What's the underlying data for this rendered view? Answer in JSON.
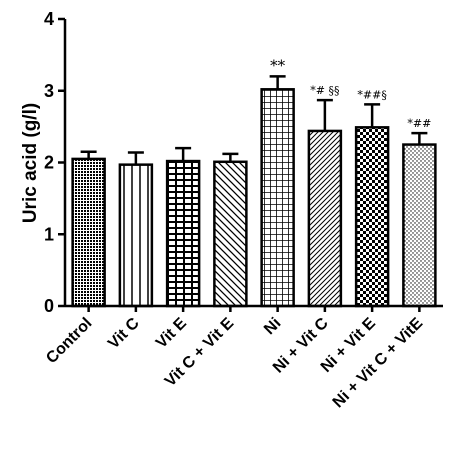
{
  "chart_data": {
    "type": "bar",
    "title": "",
    "xlabel": "",
    "ylabel": "Uric acid (g/l)",
    "ylim": [
      0,
      4
    ],
    "yticks": [
      0,
      1,
      2,
      3,
      4
    ],
    "grid": false,
    "categories": [
      "Control",
      "Vit C",
      "Vit E",
      "Vit C + Vit E",
      "Ni",
      "Ni + Vit C",
      "Ni + Vit E",
      "Ni + Vit C + VitE"
    ],
    "values": [
      2.05,
      1.97,
      2.02,
      2.01,
      3.02,
      2.44,
      2.49,
      2.25
    ],
    "errors": [
      0.1,
      0.17,
      0.18,
      0.11,
      0.18,
      0.43,
      0.32,
      0.16
    ],
    "annotations": [
      "",
      "",
      "",
      "",
      "**",
      "*# §§",
      "*##§",
      "*##"
    ],
    "patterns": [
      "dense-dots",
      "vertical-lines",
      "brick",
      "diagonal",
      "grid",
      "diagonal-fine",
      "checker",
      "sparse-dots"
    ]
  }
}
